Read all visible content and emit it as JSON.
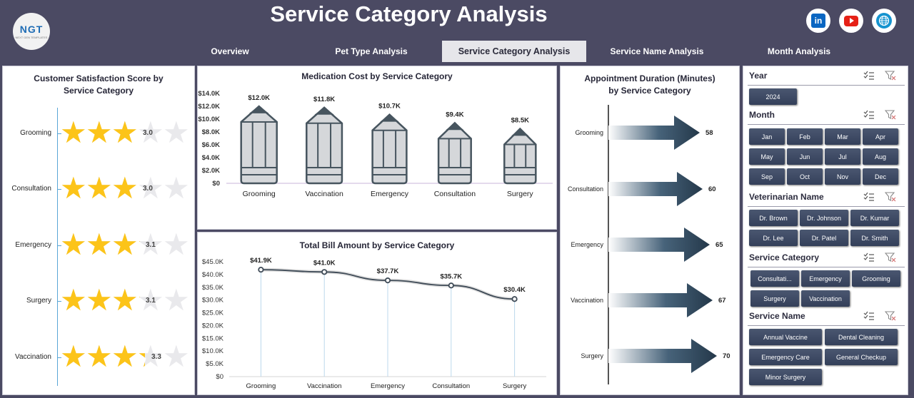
{
  "header": {
    "title": "Service Category Analysis",
    "logo_text": "NGT",
    "logo_subtext": "NEXT GEN TEMPLATES",
    "social": [
      {
        "icon": "linkedin-icon",
        "label": "in"
      },
      {
        "icon": "youtube-icon",
        "label": ""
      },
      {
        "icon": "globe-icon",
        "label": ""
      }
    ]
  },
  "tabs": [
    {
      "label": "Overview",
      "active": false
    },
    {
      "label": "Pet Type Analysis",
      "active": false
    },
    {
      "label": "Service Category Analysis",
      "active": true
    },
    {
      "label": "Service Name Analysis",
      "active": false
    },
    {
      "label": "Month Analysis",
      "active": false
    }
  ],
  "satisfaction": {
    "title_line1": "Customer Satisfaction Score by",
    "title_line2": "Service Category",
    "items": [
      {
        "label": "Grooming",
        "value": "3.0",
        "score": 3.0
      },
      {
        "label": "Consultation",
        "value": "3.0",
        "score": 3.0
      },
      {
        "label": "Emergency",
        "value": "3.1",
        "score": 3.1
      },
      {
        "label": "Surgery",
        "value": "3.1",
        "score": 3.1
      },
      {
        "label": "Vaccination",
        "value": "3.3",
        "score": 3.3
      }
    ],
    "max_stars": 5
  },
  "chart_data": [
    {
      "type": "bar",
      "title": "Medication Cost by Service Category",
      "categories": [
        "Grooming",
        "Vaccination",
        "Emergency",
        "Consultation",
        "Surgery"
      ],
      "values": [
        12.0,
        11.8,
        10.7,
        9.4,
        8.5
      ],
      "data_labels": [
        "$12.0K",
        "$11.8K",
        "$10.7K",
        "$9.4K",
        "$8.5K"
      ],
      "y_ticks": [
        "$0",
        "$2.0K",
        "$4.0K",
        "$6.0K",
        "$8.0K",
        "$10.0K",
        "$12.0K",
        "$14.0K"
      ],
      "ylim": [
        0,
        14
      ],
      "grid": false
    },
    {
      "type": "line",
      "title": "Total Bill Amount by Service Category",
      "categories": [
        "Grooming",
        "Vaccination",
        "Emergency",
        "Consultation",
        "Surgery"
      ],
      "values": [
        41.9,
        41.0,
        37.7,
        35.7,
        30.4
      ],
      "data_labels": [
        "$41.9K",
        "$41.0K",
        "$37.7K",
        "$35.7K",
        "$30.4K"
      ],
      "y_ticks": [
        "$0",
        "$5.0K",
        "$10.0K",
        "$15.0K",
        "$20.0K",
        "$25.0K",
        "$30.0K",
        "$35.0K",
        "$40.0K",
        "$45.0K"
      ],
      "ylim": [
        0,
        45
      ],
      "grid": false
    },
    {
      "type": "bar",
      "title": "Appointment Duration (Minutes) by Service Category",
      "title_line1": "Appointment Duration (Minutes)",
      "title_line2": "by Service Category",
      "orientation": "horizontal",
      "categories": [
        "Grooming",
        "Consultation",
        "Emergency",
        "Vaccination",
        "Surgery"
      ],
      "values": [
        58,
        60,
        65,
        67,
        70
      ],
      "data_labels": [
        "58",
        "60",
        "65",
        "67",
        "70"
      ],
      "grid": false
    }
  ],
  "slicers": {
    "year": {
      "title": "Year",
      "items": [
        "2024"
      ]
    },
    "month": {
      "title": "Month",
      "items": [
        "Jan",
        "Feb",
        "Mar",
        "Apr",
        "May",
        "Jun",
        "Jul",
        "Aug",
        "Sep",
        "Oct",
        "Nov",
        "Dec"
      ]
    },
    "veterinarian": {
      "title": "Veterinarian Name",
      "items": [
        "Dr. Brown",
        "Dr. Johnson",
        "Dr. Kumar",
        "Dr. Lee",
        "Dr. Patel",
        "Dr. Smith"
      ]
    },
    "service_category": {
      "title": "Service Category",
      "items": [
        "Consultati...",
        "Emergency",
        "Grooming",
        "Surgery",
        "Vaccination"
      ]
    },
    "service_name": {
      "title": "Service Name",
      "items": [
        "Annual Vaccine",
        "Dental Cleaning",
        "Emergency Care",
        "General Checkup",
        "Minor Surgery"
      ]
    }
  },
  "colors": {
    "header_bg": "#4b4a63",
    "star": "#fcc419",
    "star_off": "#e9e9ec",
    "pencil_fill": "#d5d7da",
    "pencil_stroke": "#47555f",
    "arrow_dark": "#24384a",
    "slicer_button": "#3f4a5f"
  }
}
